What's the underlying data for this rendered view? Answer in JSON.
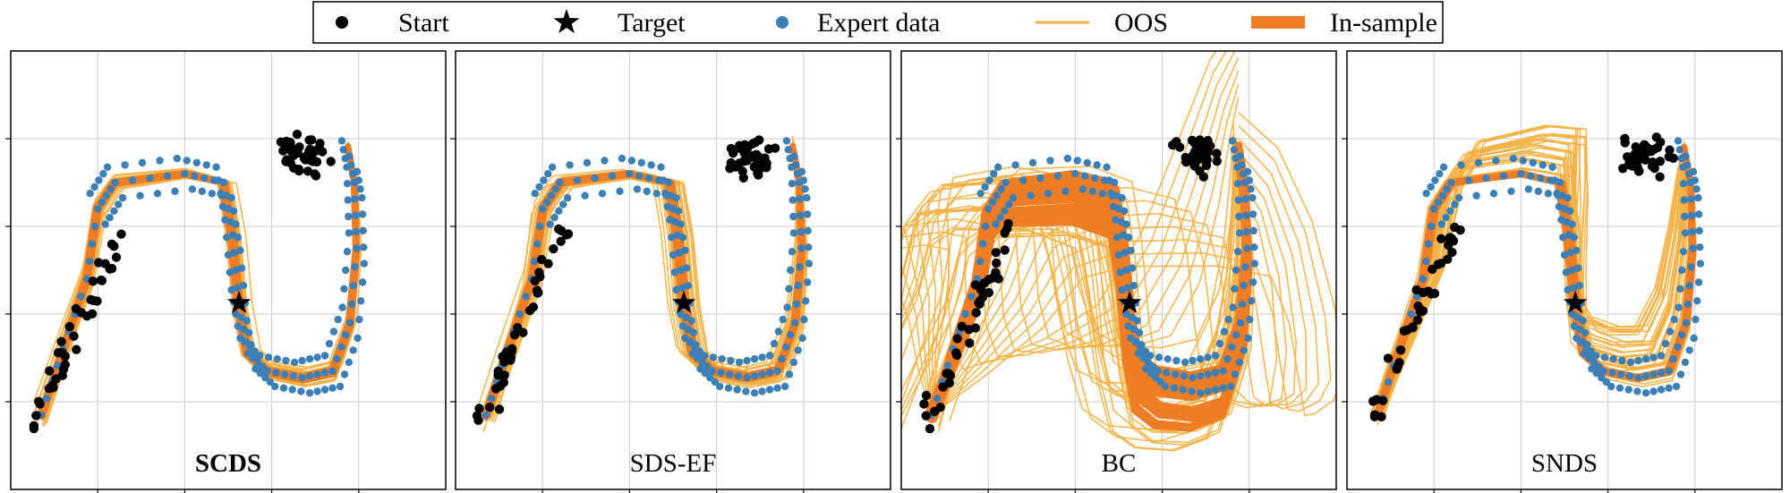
{
  "colors": {
    "start": "#000000",
    "target": "#000000",
    "expert": "#3a7fb8",
    "oos": "#f5b041",
    "in_sample": "#ee7d24",
    "grid": "#cccccc"
  },
  "legend": {
    "placement": "top-center",
    "entries": [
      {
        "label": "Start",
        "marker": "dot"
      },
      {
        "label": "Target",
        "marker": "star"
      },
      {
        "label": "Expert data",
        "marker": "dot-blue"
      },
      {
        "label": "OOS",
        "marker": "thin-line"
      },
      {
        "label": "In-sample",
        "marker": "thick-line"
      }
    ]
  },
  "chart_data": [
    {
      "type": "line",
      "title": "SCDS",
      "title_bold": true,
      "series": [
        {
          "name": "Start"
        },
        {
          "name": "Target"
        },
        {
          "name": "Expert data"
        },
        {
          "name": "OOS"
        },
        {
          "name": "In-sample"
        }
      ],
      "grid": true,
      "tick_labels": false
    },
    {
      "type": "line",
      "title": "SDS-EF",
      "title_bold": false,
      "series": [
        {
          "name": "Start"
        },
        {
          "name": "Target"
        },
        {
          "name": "Expert data"
        },
        {
          "name": "OOS"
        },
        {
          "name": "In-sample"
        }
      ],
      "grid": true,
      "tick_labels": false
    },
    {
      "type": "line",
      "title": "BC",
      "title_bold": false,
      "series": [
        {
          "name": "Start"
        },
        {
          "name": "Target"
        },
        {
          "name": "Expert data"
        },
        {
          "name": "OOS"
        },
        {
          "name": "In-sample"
        }
      ],
      "grid": true,
      "tick_labels": false
    },
    {
      "type": "line",
      "title": "SNDS",
      "title_bold": false,
      "series": [
        {
          "name": "Start"
        },
        {
          "name": "Target"
        },
        {
          "name": "Expert data"
        },
        {
          "name": "OOS"
        },
        {
          "name": "In-sample"
        }
      ],
      "grid": true,
      "tick_labels": false
    }
  ]
}
